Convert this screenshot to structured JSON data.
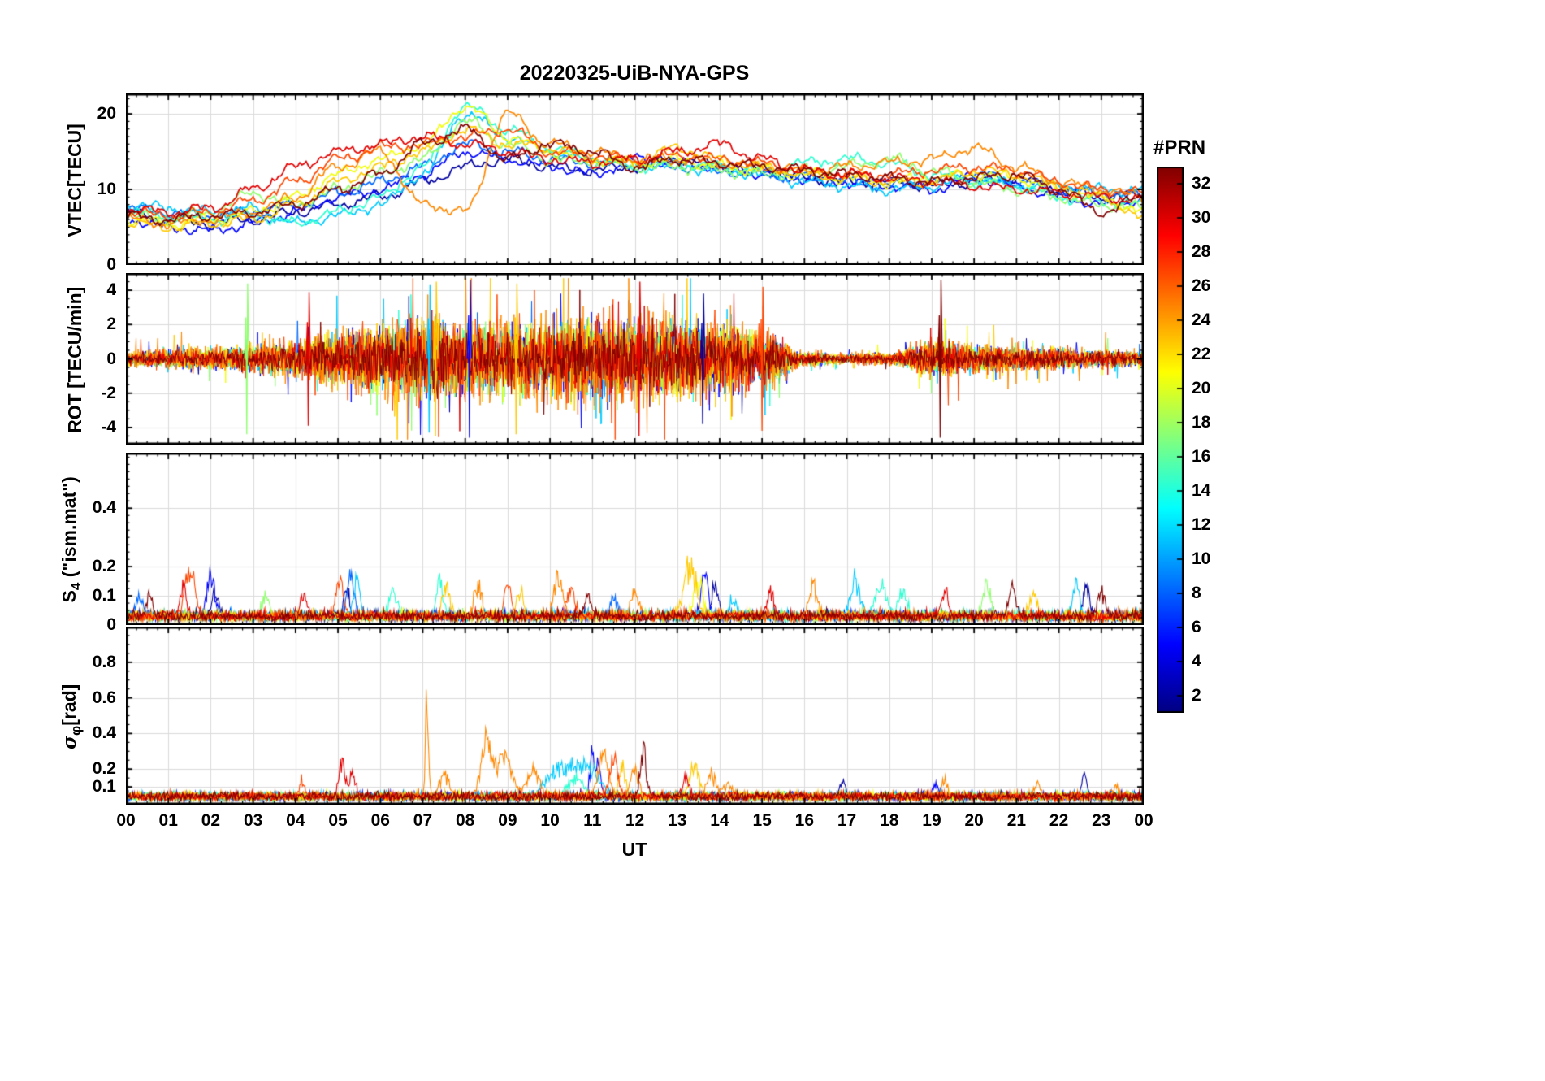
{
  "chart_data": {
    "type": "line",
    "title": "20220325-UiB-NYA-GPS",
    "xlabel": "UT",
    "x_range_hours": [
      0,
      24
    ],
    "xtick_labels": [
      "00",
      "01",
      "02",
      "03",
      "04",
      "05",
      "06",
      "07",
      "08",
      "09",
      "10",
      "11",
      "12",
      "13",
      "14",
      "15",
      "16",
      "17",
      "18",
      "19",
      "20",
      "21",
      "22",
      "23",
      "00"
    ],
    "grid": true,
    "colorbar": {
      "label": "#PRN",
      "colormap": "jet",
      "vmin": 1,
      "vmax": 33,
      "ticks": [
        2,
        4,
        6,
        8,
        10,
        12,
        14,
        16,
        18,
        20,
        22,
        24,
        26,
        28,
        30,
        32
      ]
    },
    "panels": [
      {
        "name": "vtec",
        "ylabel": {
          "pre": "VTEC[TECU]",
          "sub": "",
          "post": ""
        },
        "ylim": [
          0,
          22.7
        ],
        "yticks": [
          0,
          10,
          20
        ],
        "yminor": 1,
        "series": [
          {
            "prn": 2,
            "hourly_values": [
              7.0,
              6.0,
              5.5,
              6.0,
              7.0,
              8.0,
              9.0,
              11.0,
              13.0,
              14.0,
              13.0,
              12.5,
              13.0,
              14.0,
              13.0,
              12.5,
              11.5,
              11.0,
              11.0,
              10.5,
              11.0,
              11.5,
              10.0,
              9.0,
              9.5
            ]
          },
          {
            "prn": 5,
            "hourly_values": [
              6.0,
              5.0,
              4.5,
              5.5,
              7.0,
              9.0,
              10.0,
              12.0,
              15.0,
              14.0,
              13.0,
              12.0,
              14.0,
              13.5,
              13.0,
              12.0,
              11.5,
              11.0,
              10.5,
              10.0,
              11.5,
              10.5,
              9.0,
              8.0,
              8.5
            ]
          },
          {
            "prn": 8,
            "hourly_values": [
              7.5,
              7.0,
              6.5,
              7.0,
              8.0,
              9.5,
              11.0,
              13.0,
              16.0,
              15.0,
              14.0,
              13.5,
              13.0,
              13.0,
              12.5,
              12.0,
              11.5,
              11.0,
              10.5,
              11.0,
              12.0,
              11.0,
              10.0,
              9.5,
              9.0
            ]
          },
          {
            "prn": 11,
            "hourly_values": [
              8.0,
              7.5,
              7.0,
              7.5,
              5.5,
              6.5,
              8.0,
              12.0,
              20.0,
              17.0,
              15.0,
              14.0,
              13.5,
              13.0,
              12.5,
              12.0,
              11.0,
              10.5,
              10.0,
              10.5,
              11.5,
              10.5,
              10.5,
              10.0,
              10.0
            ]
          },
          {
            "prn": 14,
            "hourly_values": [
              7.0,
              6.5,
              6.0,
              6.5,
              5.5,
              7.0,
              9.0,
              13.0,
              21.0,
              18.0,
              15.5,
              14.0,
              13.0,
              13.5,
              13.0,
              12.5,
              13.5,
              14.0,
              13.5,
              12.0,
              11.0,
              10.5,
              9.0,
              8.5,
              8.0
            ]
          },
          {
            "prn": 17,
            "hourly_values": [
              6.5,
              6.0,
              7.0,
              9.5,
              8.0,
              10.0,
              12.0,
              14.0,
              19.0,
              16.0,
              14.0,
              13.5,
              13.0,
              13.0,
              12.5,
              12.0,
              12.5,
              13.0,
              14.0,
              12.5,
              11.0,
              10.0,
              9.0,
              8.0,
              7.5
            ]
          },
          {
            "prn": 20,
            "hourly_values": [
              6.0,
              5.5,
              6.0,
              7.0,
              9.0,
              12.0,
              14.0,
              16.0,
              21.0,
              17.0,
              15.0,
              14.0,
              13.5,
              14.0,
              13.0,
              12.5,
              12.0,
              11.5,
              11.0,
              11.5,
              12.0,
              11.5,
              10.0,
              9.0,
              7.0
            ]
          },
          {
            "prn": 22,
            "hourly_values": [
              5.5,
              5.0,
              5.5,
              6.0,
              8.0,
              11.0,
              13.0,
              15.0,
              18.0,
              16.0,
              15.5,
              14.0,
              13.5,
              15.5,
              14.0,
              13.0,
              12.0,
              11.5,
              11.0,
              11.0,
              12.5,
              12.0,
              10.5,
              9.0,
              6.0
            ]
          },
          {
            "prn": 24,
            "hourly_values": [
              6.0,
              5.5,
              6.0,
              7.0,
              9.0,
              13.0,
              15.0,
              8.0,
              7.0,
              20.0,
              16.0,
              15.0,
              14.0,
              14.0,
              13.5,
              13.0,
              12.5,
              13.0,
              13.5,
              14.0,
              15.5,
              13.0,
              11.0,
              10.0,
              9.0
            ]
          },
          {
            "prn": 26,
            "hourly_values": [
              7.0,
              6.5,
              7.0,
              8.5,
              11.0,
              14.0,
              15.5,
              16.0,
              17.0,
              18.0,
              15.0,
              14.5,
              14.0,
              14.5,
              14.0,
              13.5,
              12.5,
              12.0,
              12.0,
              12.5,
              13.0,
              12.5,
              11.0,
              10.0,
              9.5
            ]
          },
          {
            "prn": 29,
            "hourly_values": [
              7.5,
              7.0,
              7.5,
              10.0,
              13.0,
              15.0,
              16.0,
              17.0,
              16.0,
              15.0,
              14.0,
              13.5,
              14.0,
              15.0,
              16.0,
              14.0,
              12.5,
              12.0,
              11.5,
              11.0,
              10.5,
              10.0,
              9.5,
              9.0,
              8.5
            ]
          },
          {
            "prn": 32,
            "hourly_values": [
              6.5,
              6.0,
              6.5,
              7.0,
              8.0,
              10.0,
              12.0,
              16.0,
              18.0,
              14.0,
              16.0,
              15.0,
              13.0,
              14.0,
              13.5,
              13.0,
              12.5,
              12.0,
              11.5,
              11.0,
              11.5,
              12.0,
              10.0,
              7.0,
              9.0
            ]
          }
        ]
      },
      {
        "name": "rot",
        "ylabel": {
          "pre": "ROT [TECU/min]",
          "sub": "",
          "post": ""
        },
        "ylim": [
          -5,
          5
        ],
        "yticks": [
          -4,
          -2,
          0,
          2,
          4
        ],
        "yminor": 0.5,
        "noise_envelope_hourly": [
          0.5,
          0.6,
          0.7,
          0.9,
          1.2,
          1.8,
          2.2,
          2.6,
          2.5,
          2.4,
          2.6,
          2.9,
          2.6,
          2.7,
          2.3,
          1.9,
          0.5,
          0.35,
          0.4,
          1.2,
          0.9,
          0.8,
          0.7,
          0.6,
          0.5
        ],
        "series": [
          {
            "prn": 2,
            "scale": 0.45
          },
          {
            "prn": 5,
            "scale": 0.6
          },
          {
            "prn": 8,
            "scale": 0.5
          },
          {
            "prn": 11,
            "scale": 0.55
          },
          {
            "prn": 14,
            "scale": 0.5
          },
          {
            "prn": 17,
            "scale": 0.55
          },
          {
            "prn": 20,
            "scale": 0.6
          },
          {
            "prn": 22,
            "scale": 0.65
          },
          {
            "prn": 24,
            "scale": 0.75
          },
          {
            "prn": 26,
            "scale": 0.7
          },
          {
            "prn": 29,
            "scale": 0.5
          },
          {
            "prn": 32,
            "scale": 0.42
          }
        ],
        "spike_events": [
          {
            "prn": 17,
            "t": 2.85,
            "a": 4.4
          },
          {
            "prn": 29,
            "t": 4.3,
            "a": 3.9
          },
          {
            "prn": 22,
            "t": 7.3,
            "a": 4.5
          },
          {
            "prn": 11,
            "t": 7.15,
            "a": 4.3
          },
          {
            "prn": 5,
            "t": 8.1,
            "a": 4.6
          },
          {
            "prn": 22,
            "t": 9.2,
            "a": 4.4
          },
          {
            "prn": 29,
            "t": 12.1,
            "a": 4.5
          },
          {
            "prn": 2,
            "t": 13.6,
            "a": 3.8
          },
          {
            "prn": 26,
            "t": 15.0,
            "a": 4.2
          },
          {
            "prn": 32,
            "t": 19.2,
            "a": 4.6
          }
        ]
      },
      {
        "name": "s4",
        "ylabel": {
          "pre": "S",
          "sub": "4",
          "post": " (\"ism.mat\")"
        },
        "ylim": [
          0,
          0.59
        ],
        "yticks": [
          0,
          0.1,
          0.2,
          0.4
        ],
        "yminor": 0.025,
        "baseline": 0.03,
        "series_prns": [
          2,
          5,
          8,
          11,
          14,
          17,
          20,
          22,
          24,
          26,
          29,
          32
        ],
        "events": [
          {
            "prn": 8,
            "t": 0.3,
            "a": 0.09,
            "w": 0.08
          },
          {
            "prn": 32,
            "t": 0.55,
            "a": 0.1,
            "w": 0.06
          },
          {
            "prn": 29,
            "t": 1.35,
            "a": 0.12,
            "w": 0.08
          },
          {
            "prn": 26,
            "t": 1.5,
            "a": 0.21,
            "w": 0.12
          },
          {
            "prn": 5,
            "t": 2.0,
            "a": 0.18,
            "w": 0.09
          },
          {
            "prn": 2,
            "t": 2.1,
            "a": 0.1,
            "w": 0.08
          },
          {
            "prn": 17,
            "t": 3.3,
            "a": 0.08,
            "w": 0.1
          },
          {
            "prn": 29,
            "t": 4.2,
            "a": 0.1,
            "w": 0.08
          },
          {
            "prn": 26,
            "t": 5.05,
            "a": 0.15,
            "w": 0.09
          },
          {
            "prn": 2,
            "t": 5.2,
            "a": 0.12,
            "w": 0.06
          },
          {
            "prn": 8,
            "t": 5.3,
            "a": 0.18,
            "w": 0.08
          },
          {
            "prn": 11,
            "t": 5.45,
            "a": 0.16,
            "w": 0.07
          },
          {
            "prn": 14,
            "t": 6.3,
            "a": 0.1,
            "w": 0.1
          },
          {
            "prn": 14,
            "t": 7.4,
            "a": 0.14,
            "w": 0.08
          },
          {
            "prn": 22,
            "t": 7.55,
            "a": 0.13,
            "w": 0.09
          },
          {
            "prn": 24,
            "t": 8.3,
            "a": 0.12,
            "w": 0.1
          },
          {
            "prn": 26,
            "t": 9.0,
            "a": 0.13,
            "w": 0.09
          },
          {
            "prn": 22,
            "t": 9.3,
            "a": 0.1,
            "w": 0.08
          },
          {
            "prn": 24,
            "t": 10.2,
            "a": 0.16,
            "w": 0.1
          },
          {
            "prn": 26,
            "t": 10.5,
            "a": 0.12,
            "w": 0.09
          },
          {
            "prn": 32,
            "t": 10.9,
            "a": 0.1,
            "w": 0.08
          },
          {
            "prn": 8,
            "t": 11.5,
            "a": 0.09,
            "w": 0.08
          },
          {
            "prn": 24,
            "t": 12.0,
            "a": 0.1,
            "w": 0.09
          },
          {
            "prn": 22,
            "t": 13.3,
            "a": 0.22,
            "w": 0.15
          },
          {
            "prn": 20,
            "t": 13.5,
            "a": 0.15,
            "w": 0.1
          },
          {
            "prn": 5,
            "t": 13.65,
            "a": 0.2,
            "w": 0.08
          },
          {
            "prn": 2,
            "t": 13.9,
            "a": 0.13,
            "w": 0.08
          },
          {
            "prn": 11,
            "t": 14.3,
            "a": 0.09,
            "w": 0.08
          },
          {
            "prn": 29,
            "t": 15.2,
            "a": 0.1,
            "w": 0.08
          },
          {
            "prn": 24,
            "t": 16.2,
            "a": 0.14,
            "w": 0.1
          },
          {
            "prn": 11,
            "t": 17.2,
            "a": 0.15,
            "w": 0.12
          },
          {
            "prn": 14,
            "t": 17.8,
            "a": 0.14,
            "w": 0.12
          },
          {
            "prn": 14,
            "t": 18.3,
            "a": 0.1,
            "w": 0.1
          },
          {
            "prn": 29,
            "t": 19.3,
            "a": 0.12,
            "w": 0.08
          },
          {
            "prn": 17,
            "t": 20.3,
            "a": 0.13,
            "w": 0.09
          },
          {
            "prn": 32,
            "t": 20.9,
            "a": 0.12,
            "w": 0.08
          },
          {
            "prn": 22,
            "t": 21.4,
            "a": 0.1,
            "w": 0.09
          },
          {
            "prn": 11,
            "t": 22.4,
            "a": 0.15,
            "w": 0.08
          },
          {
            "prn": 2,
            "t": 22.65,
            "a": 0.13,
            "w": 0.07
          },
          {
            "prn": 32,
            "t": 23.0,
            "a": 0.1,
            "w": 0.08
          }
        ]
      },
      {
        "name": "sigma",
        "ylabel": {
          "pre": "σ",
          "sub": "φ",
          "post": "[rad]"
        },
        "ylim": [
          0,
          1.0
        ],
        "yticks": [
          0.1,
          0.2,
          0.4,
          0.6,
          0.8
        ],
        "yminor": 0.05,
        "baseline": 0.05,
        "series_prns": [
          2,
          5,
          8,
          11,
          14,
          17,
          20,
          22,
          24,
          26,
          29,
          32
        ],
        "events": [
          {
            "prn": 26,
            "t": 4.15,
            "a": 0.1,
            "w": 0.06
          },
          {
            "prn": 29,
            "t": 5.1,
            "a": 0.27,
            "w": 0.07
          },
          {
            "prn": 29,
            "t": 5.35,
            "a": 0.18,
            "w": 0.06
          },
          {
            "prn": 24,
            "t": 7.1,
            "a": 0.74,
            "w": 0.035
          },
          {
            "prn": 24,
            "t": 7.5,
            "a": 0.15,
            "w": 0.12
          },
          {
            "prn": 24,
            "t": 8.5,
            "a": 0.38,
            "w": 0.12
          },
          {
            "prn": 24,
            "t": 8.9,
            "a": 0.27,
            "w": 0.18
          },
          {
            "prn": 24,
            "t": 9.6,
            "a": 0.18,
            "w": 0.15
          },
          {
            "prn": 11,
            "t": 10.3,
            "a": 0.2,
            "w": 0.35
          },
          {
            "prn": 14,
            "t": 10.6,
            "a": 0.12,
            "w": 0.2
          },
          {
            "prn": 11,
            "t": 10.9,
            "a": 0.18,
            "w": 0.25
          },
          {
            "prn": 5,
            "t": 11.0,
            "a": 0.4,
            "w": 0.05
          },
          {
            "prn": 5,
            "t": 11.15,
            "a": 0.25,
            "w": 0.05
          },
          {
            "prn": 24,
            "t": 11.25,
            "a": 0.3,
            "w": 0.12
          },
          {
            "prn": 26,
            "t": 11.5,
            "a": 0.27,
            "w": 0.1
          },
          {
            "prn": 22,
            "t": 11.7,
            "a": 0.2,
            "w": 0.08
          },
          {
            "prn": 24,
            "t": 12.0,
            "a": 0.18,
            "w": 0.1
          },
          {
            "prn": 32,
            "t": 12.2,
            "a": 0.33,
            "w": 0.07
          },
          {
            "prn": 29,
            "t": 13.2,
            "a": 0.12,
            "w": 0.08
          },
          {
            "prn": 22,
            "t": 13.4,
            "a": 0.2,
            "w": 0.12
          },
          {
            "prn": 24,
            "t": 13.8,
            "a": 0.16,
            "w": 0.1
          },
          {
            "prn": 24,
            "t": 14.2,
            "a": 0.1,
            "w": 0.1
          },
          {
            "prn": 2,
            "t": 16.9,
            "a": 0.1,
            "w": 0.06
          },
          {
            "prn": 5,
            "t": 19.1,
            "a": 0.1,
            "w": 0.06
          },
          {
            "prn": 24,
            "t": 19.3,
            "a": 0.13,
            "w": 0.07
          },
          {
            "prn": 24,
            "t": 21.5,
            "a": 0.1,
            "w": 0.08
          },
          {
            "prn": 2,
            "t": 22.6,
            "a": 0.13,
            "w": 0.06
          },
          {
            "prn": 24,
            "t": 23.3,
            "a": 0.08,
            "w": 0.08
          }
        ]
      }
    ]
  }
}
